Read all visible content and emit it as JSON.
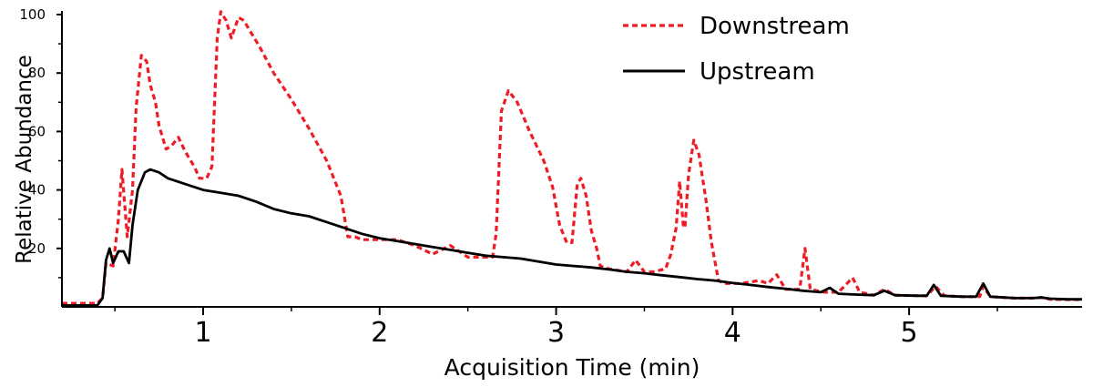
{
  "chart_data": {
    "type": "line",
    "title": "",
    "xlabel": "Acquisition Time (min)",
    "ylabel": "Relative Abundance",
    "xlim": [
      0.2,
      5.98
    ],
    "ylim": [
      0,
      100
    ],
    "x_ticks": [
      1,
      2,
      3,
      4,
      5
    ],
    "x_tick_labels": [
      "1",
      "2",
      "3",
      "4",
      "5"
    ],
    "y_ticks": [
      20,
      40,
      60,
      80,
      100
    ],
    "y_tick_labels": [
      "20",
      "40",
      "60",
      "80",
      "100"
    ],
    "grid": false,
    "legend_position": "top-right",
    "series": [
      {
        "name": "Downstream",
        "color": "#ee1c24",
        "dash": "dashed",
        "points": [
          [
            0.2,
            1.2
          ],
          [
            0.4,
            1.2
          ],
          [
            0.43,
            3
          ],
          [
            0.45,
            15
          ],
          [
            0.49,
            14
          ],
          [
            0.52,
            30
          ],
          [
            0.54,
            47
          ],
          [
            0.57,
            24
          ],
          [
            0.6,
            40
          ],
          [
            0.62,
            68
          ],
          [
            0.65,
            86
          ],
          [
            0.68,
            84
          ],
          [
            0.7,
            76
          ],
          [
            0.73,
            70
          ],
          [
            0.75,
            62
          ],
          [
            0.79,
            54
          ],
          [
            0.82,
            55
          ],
          [
            0.86,
            58
          ],
          [
            0.9,
            53
          ],
          [
            0.95,
            48
          ],
          [
            0.98,
            44
          ],
          [
            1.02,
            44
          ],
          [
            1.05,
            48
          ],
          [
            1.08,
            92
          ],
          [
            1.1,
            101
          ],
          [
            1.13,
            98
          ],
          [
            1.16,
            92
          ],
          [
            1.2,
            99
          ],
          [
            1.23,
            98
          ],
          [
            1.27,
            94
          ],
          [
            1.32,
            89
          ],
          [
            1.4,
            80
          ],
          [
            1.5,
            71
          ],
          [
            1.6,
            61
          ],
          [
            1.7,
            50
          ],
          [
            1.78,
            38
          ],
          [
            1.82,
            24
          ],
          [
            1.86,
            24
          ],
          [
            1.9,
            23
          ],
          [
            1.95,
            23
          ],
          [
            2.0,
            23
          ],
          [
            2.1,
            23
          ],
          [
            2.2,
            21
          ],
          [
            2.3,
            18
          ],
          [
            2.4,
            21
          ],
          [
            2.5,
            17
          ],
          [
            2.6,
            17
          ],
          [
            2.64,
            17
          ],
          [
            2.66,
            25
          ],
          [
            2.69,
            67
          ],
          [
            2.73,
            74
          ],
          [
            2.78,
            70
          ],
          [
            2.85,
            60
          ],
          [
            2.93,
            50
          ],
          [
            2.98,
            41
          ],
          [
            3.02,
            28
          ],
          [
            3.06,
            22
          ],
          [
            3.09,
            22
          ],
          [
            3.12,
            42
          ],
          [
            3.14,
            44
          ],
          [
            3.17,
            38
          ],
          [
            3.2,
            26
          ],
          [
            3.23,
            20
          ],
          [
            3.25,
            14
          ],
          [
            3.3,
            13
          ],
          [
            3.4,
            12
          ],
          [
            3.45,
            16
          ],
          [
            3.5,
            12
          ],
          [
            3.55,
            12
          ],
          [
            3.62,
            13
          ],
          [
            3.65,
            18
          ],
          [
            3.68,
            27
          ],
          [
            3.7,
            43
          ],
          [
            3.72,
            28
          ],
          [
            3.73,
            27
          ],
          [
            3.75,
            45
          ],
          [
            3.78,
            57
          ],
          [
            3.81,
            52
          ],
          [
            3.85,
            36
          ],
          [
            3.88,
            22
          ],
          [
            3.92,
            9
          ],
          [
            3.95,
            8
          ],
          [
            4.05,
            8
          ],
          [
            4.15,
            9
          ],
          [
            4.2,
            8
          ],
          [
            4.25,
            11
          ],
          [
            4.3,
            6
          ],
          [
            4.38,
            6
          ],
          [
            4.41,
            20
          ],
          [
            4.44,
            6
          ],
          [
            4.52,
            5
          ],
          [
            4.6,
            5
          ],
          [
            4.68,
            10
          ],
          [
            4.72,
            5
          ],
          [
            4.8,
            4
          ],
          [
            4.86,
            6
          ],
          [
            4.92,
            4
          ],
          [
            5.05,
            3.8
          ],
          [
            5.1,
            3.8
          ],
          [
            5.15,
            7
          ],
          [
            5.2,
            3.8
          ],
          [
            5.3,
            3.5
          ],
          [
            5.4,
            3.5
          ],
          [
            5.42,
            7
          ],
          [
            5.46,
            3.5
          ],
          [
            5.6,
            3
          ],
          [
            5.7,
            3
          ],
          [
            5.75,
            3.2
          ],
          [
            5.8,
            2.6
          ],
          [
            5.9,
            2.5
          ],
          [
            5.98,
            2.5
          ]
        ]
      },
      {
        "name": "Upstream",
        "color": "#000000",
        "dash": "solid",
        "points": [
          [
            0.2,
            0.5
          ],
          [
            0.4,
            0.5
          ],
          [
            0.43,
            3
          ],
          [
            0.45,
            16
          ],
          [
            0.47,
            20
          ],
          [
            0.49,
            15
          ],
          [
            0.52,
            19
          ],
          [
            0.55,
            19
          ],
          [
            0.58,
            15
          ],
          [
            0.6,
            28
          ],
          [
            0.63,
            40
          ],
          [
            0.67,
            46
          ],
          [
            0.7,
            47
          ],
          [
            0.75,
            46
          ],
          [
            0.8,
            44
          ],
          [
            0.9,
            42
          ],
          [
            1.0,
            40
          ],
          [
            1.1,
            39
          ],
          [
            1.2,
            38
          ],
          [
            1.3,
            36
          ],
          [
            1.4,
            33.5
          ],
          [
            1.5,
            32
          ],
          [
            1.6,
            31
          ],
          [
            1.7,
            29
          ],
          [
            1.8,
            27
          ],
          [
            1.9,
            25
          ],
          [
            2.0,
            23.5
          ],
          [
            2.1,
            22.5
          ],
          [
            2.2,
            21.5
          ],
          [
            2.3,
            20.5
          ],
          [
            2.4,
            19.5
          ],
          [
            2.5,
            18.5
          ],
          [
            2.6,
            17.5
          ],
          [
            2.7,
            17
          ],
          [
            2.8,
            16.5
          ],
          [
            2.9,
            15.5
          ],
          [
            3.0,
            14.5
          ],
          [
            3.1,
            14
          ],
          [
            3.2,
            13.5
          ],
          [
            3.3,
            12.8
          ],
          [
            3.4,
            12
          ],
          [
            3.5,
            11.5
          ],
          [
            3.6,
            10.8
          ],
          [
            3.7,
            10.2
          ],
          [
            3.8,
            9.5
          ],
          [
            3.9,
            9
          ],
          [
            4.0,
            8.2
          ],
          [
            4.1,
            7.5
          ],
          [
            4.2,
            6.8
          ],
          [
            4.3,
            6.2
          ],
          [
            4.4,
            5.5
          ],
          [
            4.5,
            5
          ],
          [
            4.55,
            6.5
          ],
          [
            4.6,
            4.5
          ],
          [
            4.7,
            4.2
          ],
          [
            4.8,
            4
          ],
          [
            4.86,
            5.5
          ],
          [
            4.92,
            4
          ],
          [
            5.05,
            3.8
          ],
          [
            5.1,
            3.8
          ],
          [
            5.14,
            7.5
          ],
          [
            5.18,
            3.8
          ],
          [
            5.3,
            3.5
          ],
          [
            5.38,
            3.5
          ],
          [
            5.42,
            8
          ],
          [
            5.46,
            3.5
          ],
          [
            5.6,
            3
          ],
          [
            5.7,
            3
          ],
          [
            5.75,
            3.2
          ],
          [
            5.8,
            2.8
          ],
          [
            5.9,
            2.6
          ],
          [
            5.98,
            2.6
          ]
        ]
      }
    ]
  }
}
